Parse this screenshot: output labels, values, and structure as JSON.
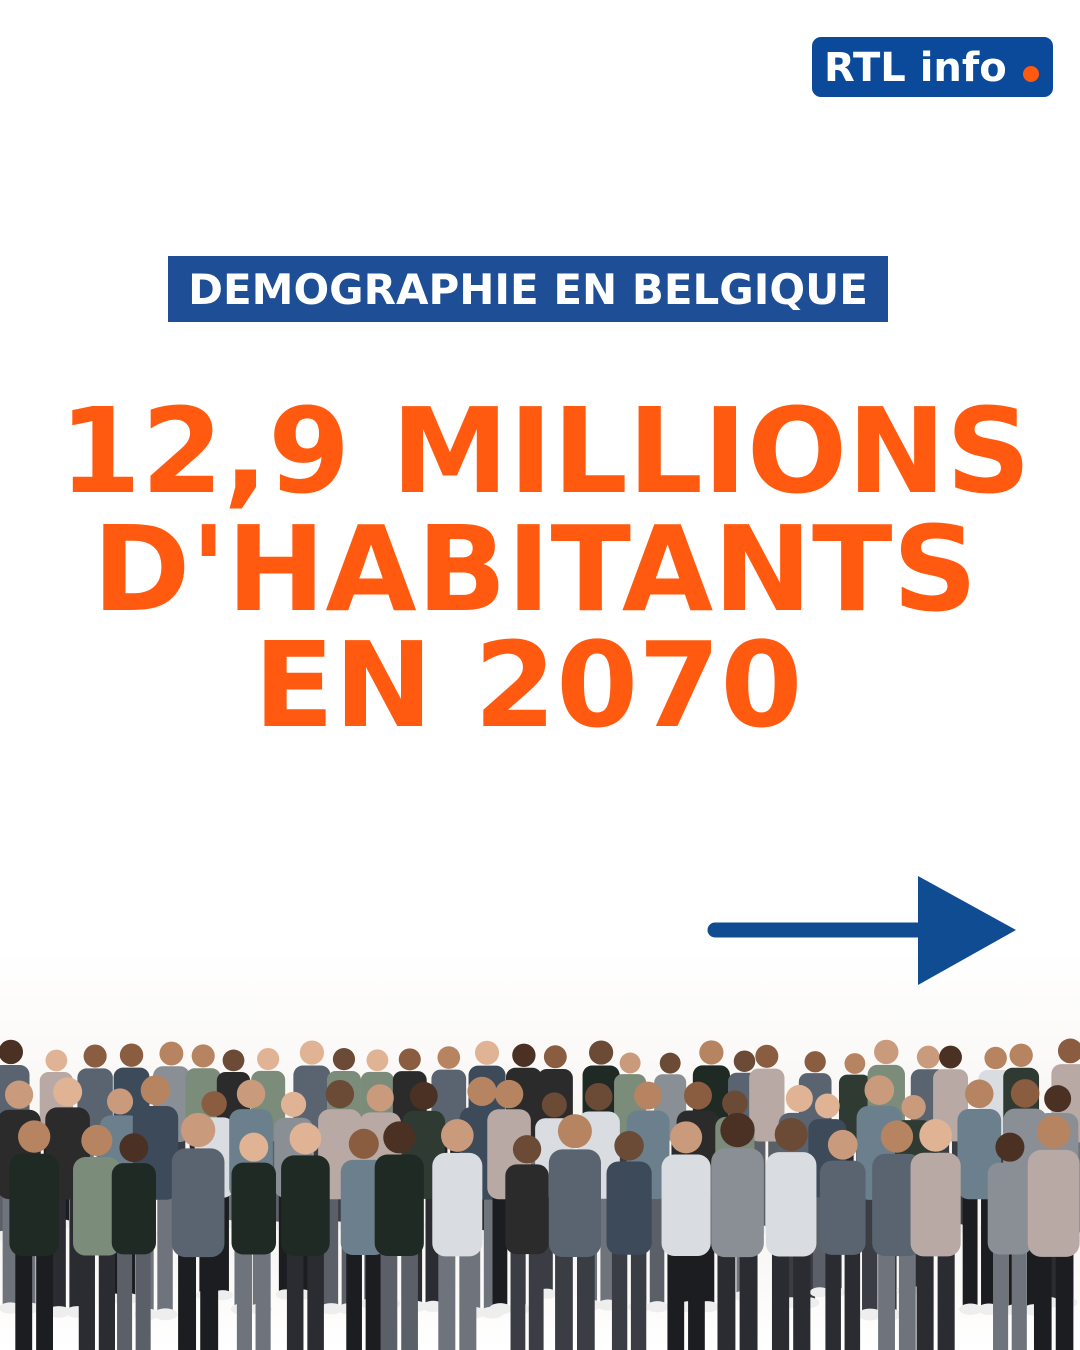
{
  "logo": {
    "text": "RTL info"
  },
  "label": "DEMOGRAPHIE EN BELGIQUE",
  "headline": [
    "12,9 MILLIONS",
    "D'HABITANTS",
    "EN 2070"
  ]
}
